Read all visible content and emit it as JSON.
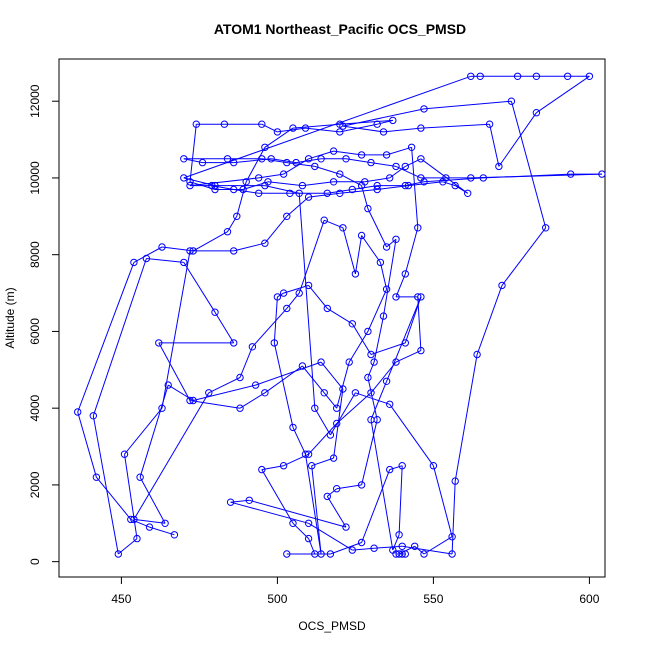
{
  "chart_data": {
    "type": "line",
    "title": "ATOM1 Northeast_Pacific OCS_PMSD",
    "xlabel": "OCS_PMSD",
    "ylabel": "Altitude (m)",
    "xlim": [
      430,
      605
    ],
    "ylim": [
      -400,
      13100
    ],
    "x_ticks": [
      450,
      500,
      550,
      600
    ],
    "y_ticks": [
      0,
      2000,
      4000,
      6000,
      8000,
      10000,
      12000
    ],
    "line_color": "#0000ff",
    "marker": "open-circle",
    "grid": false,
    "series": [
      {
        "points": [
          [
            538,
            200
          ],
          [
            540,
            200
          ],
          [
            541,
            200
          ],
          [
            539,
            200
          ],
          [
            544,
            400
          ],
          [
            547,
            200
          ],
          [
            556,
            650
          ],
          [
            550,
            2500
          ],
          [
            536,
            4100
          ],
          [
            525,
            4400
          ],
          [
            517,
            3300
          ],
          [
            512,
            4000
          ],
          [
            507,
            9600
          ],
          [
            496,
            9800
          ],
          [
            480,
            9800
          ],
          [
            470,
            10000
          ],
          [
            562,
            12650
          ],
          [
            565,
            12650
          ],
          [
            577,
            12650
          ],
          [
            583,
            12650
          ],
          [
            593,
            12650
          ],
          [
            600,
            12650
          ],
          [
            583,
            11700
          ],
          [
            571,
            10300
          ],
          [
            568,
            11400
          ],
          [
            546,
            11300
          ],
          [
            534,
            11200
          ],
          [
            521,
            11350
          ],
          [
            547,
            11800
          ],
          [
            575,
            12000
          ],
          [
            586,
            8700
          ],
          [
            572,
            7200
          ],
          [
            564,
            5400
          ],
          [
            557,
            2100
          ],
          [
            556,
            200
          ],
          [
            540,
            400
          ],
          [
            531,
            350
          ],
          [
            524,
            300
          ],
          [
            510,
            1000
          ],
          [
            485,
            1550
          ],
          [
            491,
            1600
          ],
          [
            522,
            900
          ],
          [
            516,
            1700
          ],
          [
            519,
            1900
          ],
          [
            527,
            2000
          ],
          [
            532,
            3700
          ],
          [
            529,
            4800
          ],
          [
            531,
            5200
          ],
          [
            534,
            6400
          ],
          [
            538,
            8400
          ],
          [
            535,
            8200
          ],
          [
            529,
            9200
          ],
          [
            527,
            9800
          ],
          [
            520,
            10100
          ],
          [
            512,
            10300
          ],
          [
            503,
            10400
          ],
          [
            495,
            10500
          ],
          [
            484,
            10500
          ],
          [
            470,
            10500
          ],
          [
            476,
            10400
          ],
          [
            486,
            10400
          ],
          [
            498,
            10500
          ],
          [
            506,
            10400
          ],
          [
            514,
            10500
          ],
          [
            522,
            10500
          ],
          [
            530,
            10400
          ],
          [
            538,
            10300
          ],
          [
            546,
            10000
          ],
          [
            554,
            10000
          ],
          [
            562,
            10000
          ],
          [
            604,
            10100
          ],
          [
            594,
            10100
          ],
          [
            566,
            10000
          ],
          [
            547,
            9900
          ],
          [
            541,
            9800
          ],
          [
            532,
            9800
          ],
          [
            524,
            9700
          ],
          [
            516,
            9600
          ],
          [
            504,
            9600
          ],
          [
            494,
            9600
          ],
          [
            486,
            9700
          ],
          [
            479,
            9800
          ],
          [
            472,
            9800
          ],
          [
            494,
            10000
          ],
          [
            502,
            10100
          ],
          [
            510,
            10500
          ],
          [
            518,
            10700
          ],
          [
            527,
            10600
          ],
          [
            535,
            10600
          ],
          [
            543,
            10800
          ],
          [
            545,
            8700
          ],
          [
            541,
            7500
          ],
          [
            538,
            6900
          ],
          [
            545,
            6900
          ],
          [
            546,
            5500
          ],
          [
            538,
            5200
          ],
          [
            530,
            4400
          ],
          [
            519,
            3600
          ],
          [
            510,
            2800
          ],
          [
            502,
            2500
          ],
          [
            495,
            2400
          ],
          [
            505,
            1000
          ],
          [
            510,
            600
          ],
          [
            512,
            200
          ],
          [
            503,
            200
          ],
          [
            517,
            200
          ],
          [
            527,
            500
          ],
          [
            536,
            2400
          ],
          [
            540,
            2500
          ],
          [
            539,
            700
          ],
          [
            537,
            300
          ],
          [
            530,
            3700
          ],
          [
            535,
            4700
          ],
          [
            546,
            6900
          ],
          [
            541,
            5700
          ],
          [
            530,
            5400
          ],
          [
            524,
            6200
          ],
          [
            516,
            6600
          ],
          [
            510,
            7200
          ],
          [
            502,
            7000
          ],
          [
            500,
            6900
          ],
          [
            499,
            5700
          ],
          [
            505,
            3500
          ],
          [
            509,
            2800
          ],
          [
            514,
            200
          ],
          [
            511,
            2500
          ],
          [
            518,
            2700
          ],
          [
            521,
            4500
          ],
          [
            514,
            5200
          ],
          [
            493,
            4600
          ],
          [
            473,
            4200
          ],
          [
            465,
            4600
          ],
          [
            456,
            2200
          ],
          [
            464,
            1000
          ],
          [
            454,
            1100
          ],
          [
            478,
            4400
          ],
          [
            488,
            4800
          ],
          [
            492,
            5600
          ],
          [
            503,
            6600
          ],
          [
            507,
            7000
          ],
          [
            515,
            8900
          ],
          [
            521,
            8700
          ],
          [
            525,
            7500
          ],
          [
            527,
            8500
          ],
          [
            533,
            7800
          ],
          [
            535,
            7100
          ],
          [
            529,
            6000
          ],
          [
            523,
            5200
          ],
          [
            519,
            4000
          ],
          [
            515,
            4400
          ],
          [
            508,
            5100
          ],
          [
            496,
            4400
          ],
          [
            488,
            4000
          ],
          [
            472,
            4200
          ],
          [
            462,
            5700
          ],
          [
            486,
            5700
          ],
          [
            480,
            6500
          ],
          [
            470,
            7800
          ],
          [
            458,
            7900
          ],
          [
            441,
            3800
          ],
          [
            449,
            200
          ],
          [
            455,
            600
          ],
          [
            451,
            2800
          ],
          [
            463,
            4000
          ],
          [
            472,
            8100
          ],
          [
            486,
            8100
          ],
          [
            496,
            8300
          ],
          [
            503,
            9000
          ],
          [
            510,
            9500
          ],
          [
            520,
            9600
          ],
          [
            532,
            9700
          ],
          [
            542,
            9800
          ],
          [
            553,
            9900
          ],
          [
            557,
            9800
          ],
          [
            561,
            9600
          ],
          [
            546,
            10500
          ],
          [
            541,
            10300
          ],
          [
            536,
            10000
          ],
          [
            528,
            9900
          ],
          [
            518,
            9900
          ],
          [
            508,
            9800
          ],
          [
            497,
            9900
          ],
          [
            489,
            9700
          ],
          [
            480,
            9700
          ],
          [
            472,
            9900
          ],
          [
            474,
            11400
          ],
          [
            483,
            11400
          ],
          [
            495,
            11400
          ],
          [
            500,
            11200
          ],
          [
            509,
            11300
          ],
          [
            520,
            11200
          ],
          [
            532,
            11400
          ],
          [
            537,
            11500
          ],
          [
            520,
            11400
          ],
          [
            505,
            11300
          ],
          [
            496,
            10800
          ],
          [
            490,
            9900
          ],
          [
            487,
            9000
          ],
          [
            484,
            8600
          ],
          [
            473,
            8100
          ],
          [
            463,
            8200
          ],
          [
            454,
            7800
          ],
          [
            436,
            3900
          ],
          [
            442,
            2200
          ],
          [
            453,
            1100
          ],
          [
            459,
            900
          ],
          [
            467,
            700
          ]
        ]
      }
    ]
  }
}
